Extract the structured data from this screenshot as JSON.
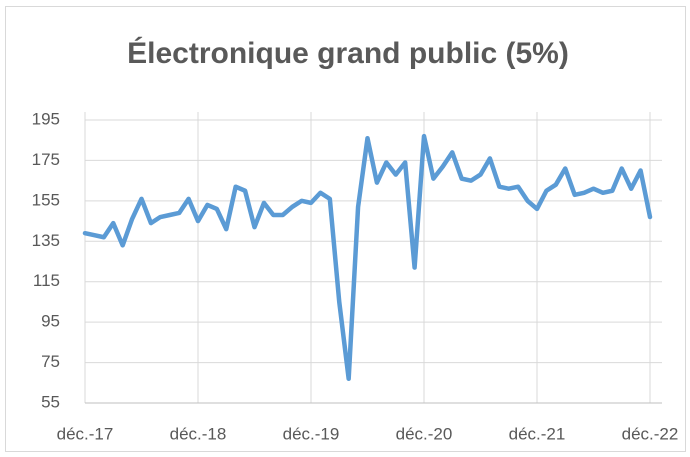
{
  "chart_data": {
    "type": "line",
    "title": "Électronique grand public (5%)",
    "categories": [
      "déc.-17",
      null,
      null,
      null,
      null,
      null,
      null,
      null,
      null,
      null,
      null,
      null,
      "déc.-18",
      null,
      null,
      null,
      null,
      null,
      null,
      null,
      null,
      null,
      null,
      null,
      "déc.-19",
      null,
      null,
      null,
      null,
      null,
      null,
      null,
      null,
      null,
      null,
      null,
      "déc.-20",
      null,
      null,
      null,
      null,
      null,
      null,
      null,
      null,
      null,
      null,
      null,
      "déc.-21",
      null,
      null,
      null,
      null,
      null,
      null,
      null,
      null,
      null,
      null,
      null,
      "déc.-22"
    ],
    "series": [
      {
        "color": "#5b9bd5",
        "values": [
          139,
          138,
          137,
          144,
          133,
          146,
          156,
          144,
          147,
          148,
          149,
          156,
          145,
          153,
          151,
          141,
          162,
          160,
          142,
          154,
          148,
          148,
          152,
          155,
          154,
          159,
          156,
          105,
          67,
          152,
          186,
          164,
          174,
          168,
          174,
          122,
          187,
          166,
          172,
          179,
          166,
          165,
          168,
          176,
          162,
          161,
          162,
          155,
          151,
          160,
          163,
          171,
          158,
          159,
          161,
          159,
          160,
          171,
          161,
          170,
          147
        ]
      }
    ],
    "ylim": [
      55,
      195
    ],
    "yticks": [
      55,
      75,
      95,
      115,
      135,
      155,
      175,
      195
    ],
    "grid": true
  }
}
